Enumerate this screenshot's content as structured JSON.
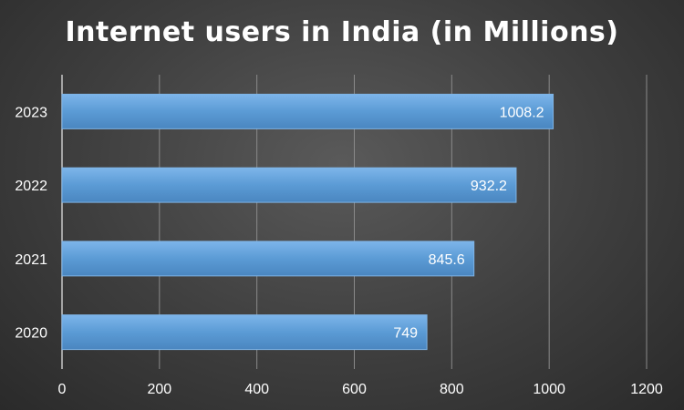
{
  "chart_data": {
    "type": "bar",
    "orientation": "horizontal",
    "title": "Internet users in India (in Millions)",
    "categories": [
      "2020",
      "2021",
      "2022",
      "2023"
    ],
    "values": [
      749,
      845.6,
      932.2,
      1008.2
    ],
    "value_labels": [
      "749",
      "845.6",
      "932.2",
      "1008.2"
    ],
    "xlim": [
      0,
      1200
    ],
    "x_ticks": [
      0,
      200,
      400,
      600,
      800,
      1000,
      1200
    ],
    "xlabel": "",
    "ylabel": "",
    "grid": "vertical",
    "legend": "none",
    "colors": {
      "bar": "#5b9bd5",
      "bar_edge": "#7fb4e6",
      "text": "#ffffff",
      "grid": "#8a8a8a"
    }
  }
}
